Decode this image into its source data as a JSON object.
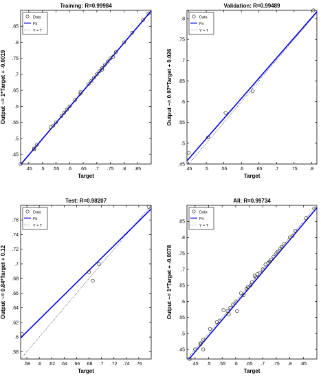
{
  "colors": {
    "fit": "#0000dd",
    "ideal": "#555555",
    "points": "#222222",
    "axes": "#000000"
  },
  "legend": {
    "data": "Data",
    "fit": "Fit",
    "ideal": "Y = T"
  },
  "chart_data": [
    {
      "type": "scatter",
      "title": "Training: R=0.99984",
      "xlabel": "Target",
      "ylabel": "Output ~= 1*Target + -0.0019",
      "xlim": [
        0.42,
        0.9
      ],
      "ylim": [
        0.42,
        0.9
      ],
      "xticks": [
        0.45,
        0.5,
        0.55,
        0.6,
        0.65,
        0.7,
        0.75,
        0.8,
        0.85
      ],
      "yticks": [
        0.45,
        0.5,
        0.55,
        0.6,
        0.65,
        0.7,
        0.75,
        0.8,
        0.85
      ],
      "fit": {
        "slope": 1.0,
        "intercept": -0.0019
      },
      "legend_position": "top-left",
      "series": [
        {
          "name": "Data",
          "x": [
            0.42,
            0.47,
            0.47,
            0.48,
            0.53,
            0.54,
            0.55,
            0.57,
            0.58,
            0.59,
            0.6,
            0.62,
            0.64,
            0.64,
            0.67,
            0.68,
            0.69,
            0.7,
            0.71,
            0.72,
            0.72,
            0.73,
            0.74,
            0.75,
            0.76,
            0.77,
            0.8,
            0.83,
            0.87,
            0.89
          ],
          "y": [
            0.42,
            0.466,
            0.469,
            0.48,
            0.535,
            0.54,
            0.55,
            0.57,
            0.58,
            0.59,
            0.6,
            0.62,
            0.64,
            0.645,
            0.67,
            0.68,
            0.69,
            0.7,
            0.71,
            0.715,
            0.72,
            0.73,
            0.74,
            0.75,
            0.755,
            0.77,
            0.8,
            0.83,
            0.87,
            0.89
          ]
        },
        {
          "name": "Fit"
        },
        {
          "name": "Y = T"
        }
      ]
    },
    {
      "type": "scatter",
      "title": "Validation: R=0.99489",
      "xlabel": "Target",
      "ylabel": "Output ~= 0.97*Target + 0.026",
      "xlim": [
        0.445,
        0.815
      ],
      "ylim": [
        0.45,
        0.82
      ],
      "xticks": [
        0.45,
        0.5,
        0.55,
        0.6,
        0.65,
        0.7,
        0.75,
        0.8
      ],
      "yticks": [
        0.45,
        0.5,
        0.55,
        0.6,
        0.65,
        0.7,
        0.75,
        0.8
      ],
      "fit": {
        "slope": 0.97,
        "intercept": 0.026
      },
      "legend_position": "top-left",
      "series": [
        {
          "name": "Data",
          "x": [
            0.45,
            0.505,
            0.555,
            0.632,
            0.805
          ],
          "y": [
            0.477,
            0.514,
            0.573,
            0.625,
            0.82
          ]
        },
        {
          "name": "Fit"
        },
        {
          "name": "Y = T"
        }
      ]
    },
    {
      "type": "scatter",
      "title": "Test: R=0.98207",
      "xlabel": "Target",
      "ylabel": "Output ~= 0.84*Target + 0.12",
      "xlim": [
        0.57,
        0.78
      ],
      "ylim": [
        0.57,
        0.78
      ],
      "xticks": [
        0.58,
        0.6,
        0.62,
        0.64,
        0.66,
        0.68,
        0.7,
        0.72,
        0.74,
        0.76
      ],
      "yticks": [
        0.58,
        0.6,
        0.62,
        0.64,
        0.66,
        0.68,
        0.7,
        0.72,
        0.74,
        0.76
      ],
      "fit": {
        "slope": 0.84,
        "intercept": 0.12
      },
      "legend_position": "top-left",
      "series": [
        {
          "name": "Data",
          "x": [
            0.572,
            0.68,
            0.686,
            0.696,
            0.776
          ],
          "y": [
            0.604,
            0.689,
            0.677,
            0.7,
            0.778
          ]
        },
        {
          "name": "Fit"
        },
        {
          "name": "Y = T"
        }
      ]
    },
    {
      "type": "scatter",
      "title": "All: R=0.99734",
      "xlabel": "Target",
      "ylabel": "Output ~= 1*Target + -0.0078",
      "xlim": [
        0.42,
        0.9
      ],
      "ylim": [
        0.42,
        0.9
      ],
      "xticks": [
        0.45,
        0.5,
        0.55,
        0.6,
        0.65,
        0.7,
        0.75,
        0.8,
        0.85
      ],
      "yticks": [
        0.45,
        0.5,
        0.55,
        0.6,
        0.65,
        0.7,
        0.75,
        0.8,
        0.85
      ],
      "fit": {
        "slope": 1.0,
        "intercept": -0.0078
      },
      "legend_position": "top-left",
      "series": [
        {
          "name": "Data",
          "x": [
            0.43,
            0.45,
            0.47,
            0.47,
            0.48,
            0.48,
            0.505,
            0.53,
            0.54,
            0.555,
            0.57,
            0.575,
            0.58,
            0.59,
            0.6,
            0.605,
            0.62,
            0.63,
            0.64,
            0.645,
            0.655,
            0.66,
            0.67,
            0.675,
            0.68,
            0.69,
            0.7,
            0.71,
            0.72,
            0.725,
            0.73,
            0.74,
            0.75,
            0.755,
            0.765,
            0.77,
            0.78,
            0.8,
            0.81,
            0.82,
            0.86,
            0.89
          ],
          "y": [
            0.42,
            0.45,
            0.466,
            0.469,
            0.48,
            0.45,
            0.514,
            0.535,
            0.54,
            0.573,
            0.57,
            0.56,
            0.58,
            0.59,
            0.6,
            0.57,
            0.625,
            0.62,
            0.64,
            0.645,
            0.65,
            0.66,
            0.68,
            0.675,
            0.685,
            0.69,
            0.7,
            0.715,
            0.72,
            0.725,
            0.73,
            0.74,
            0.75,
            0.755,
            0.765,
            0.77,
            0.78,
            0.8,
            0.805,
            0.82,
            0.86,
            0.89
          ]
        },
        {
          "name": "Fit"
        },
        {
          "name": "Y = T"
        }
      ]
    }
  ]
}
